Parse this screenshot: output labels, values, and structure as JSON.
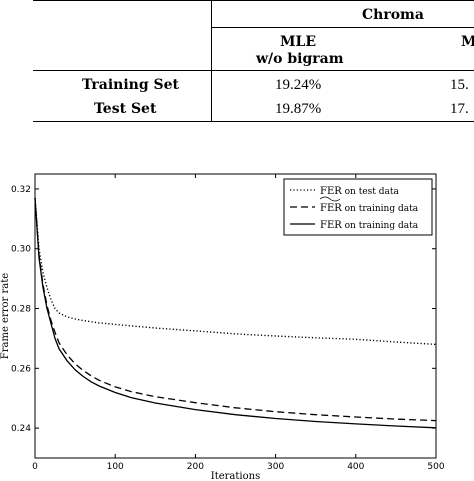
{
  "table": {
    "group_header": "Chroma",
    "col1_header_line1": "MLE",
    "col1_header_line2": "w/o bigram",
    "col2_header_partial": "M",
    "rows": [
      {
        "label": "Training Set",
        "col1": "19.24%",
        "col2_partial": "15."
      },
      {
        "label": "Test Set",
        "col1": "19.87%",
        "col2_partial": "17."
      }
    ]
  },
  "chart_data": {
    "type": "line",
    "xlabel": "Iterations",
    "ylabel": "Frame error rate",
    "xlim": [
      0,
      500
    ],
    "ylim": [
      0.23,
      0.325
    ],
    "xticks": [
      "0",
      "100",
      "200",
      "300",
      "400",
      "500"
    ],
    "yticks": [
      "0.24",
      "0.26",
      "0.28",
      "0.30",
      "0.32"
    ],
    "grid": false,
    "legend_position": "top-right",
    "series": [
      {
        "name": "FER on test data",
        "style": "dotted",
        "x": [
          0,
          5,
          10,
          15,
          20,
          25,
          30,
          40,
          50,
          60,
          70,
          80,
          100,
          120,
          150,
          200,
          250,
          300,
          350,
          400,
          450,
          500
        ],
        "y": [
          0.317,
          0.3,
          0.292,
          0.287,
          0.283,
          0.28,
          0.2785,
          0.2772,
          0.2765,
          0.276,
          0.2756,
          0.2752,
          0.2747,
          0.2742,
          0.2735,
          0.2725,
          0.2715,
          0.2708,
          0.2702,
          0.2697,
          0.2688,
          0.268
        ]
      },
      {
        "name": "FER on training data (tilde)",
        "style": "dashed",
        "x": [
          0,
          5,
          10,
          15,
          20,
          25,
          30,
          40,
          50,
          60,
          70,
          80,
          100,
          120,
          150,
          200,
          250,
          300,
          350,
          400,
          450,
          500
        ],
        "y": [
          0.317,
          0.298,
          0.288,
          0.281,
          0.276,
          0.272,
          0.2685,
          0.2645,
          0.2615,
          0.2593,
          0.2575,
          0.256,
          0.2538,
          0.2522,
          0.2505,
          0.2485,
          0.2468,
          0.2455,
          0.2445,
          0.2437,
          0.243,
          0.2425
        ]
      },
      {
        "name": "FER on training data",
        "style": "solid",
        "x": [
          0,
          5,
          10,
          15,
          20,
          25,
          30,
          40,
          50,
          60,
          70,
          80,
          100,
          120,
          150,
          200,
          250,
          300,
          350,
          400,
          450,
          500
        ],
        "y": [
          0.317,
          0.297,
          0.287,
          0.28,
          0.275,
          0.27,
          0.2665,
          0.2625,
          0.2595,
          0.2573,
          0.2555,
          0.2541,
          0.2519,
          0.2502,
          0.2484,
          0.2462,
          0.2445,
          0.2432,
          0.2422,
          0.2414,
          0.2407,
          0.2401
        ]
      }
    ],
    "legend": [
      {
        "prefix": "FER",
        "suffix": " on test data",
        "style": "dotted",
        "tilde": false
      },
      {
        "prefix": "FER",
        "suffix": " on training data",
        "style": "dashed",
        "tilde": true
      },
      {
        "prefix": "FER",
        "suffix": " on training data",
        "style": "solid",
        "tilde": false
      }
    ]
  }
}
